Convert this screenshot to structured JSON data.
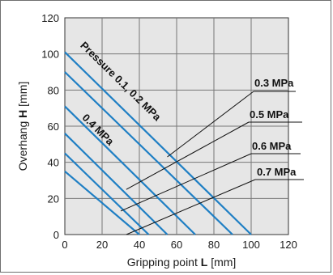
{
  "chart_data": {
    "type": "line",
    "xlabel": "Gripping point",
    "xlabel_symbol": "L",
    "xlabel_unit": "[mm]",
    "ylabel": "Overhang",
    "ylabel_symbol": "H",
    "ylabel_unit": "[mm]",
    "xlim": [
      0,
      120
    ],
    "ylim": [
      0,
      120
    ],
    "x_ticks": [
      "0",
      "20",
      "40",
      "60",
      "80",
      "100",
      "120"
    ],
    "y_ticks": [
      "0",
      "20",
      "40",
      "60",
      "80",
      "100",
      "120"
    ],
    "grid": true,
    "series": [
      {
        "label": "Pressure 0.1, 0.2 MPa",
        "x": [
          0,
          100
        ],
        "y": [
          101,
          0
        ]
      },
      {
        "x": [
          0,
          90
        ],
        "y": [
          90,
          0
        ]
      },
      {
        "x": [
          0,
          70
        ],
        "y": [
          71,
          0
        ]
      },
      {
        "label": "0.4 MPa",
        "x": [
          0,
          55
        ],
        "y": [
          56,
          0
        ]
      },
      {
        "x": [
          0,
          45
        ],
        "y": [
          45,
          0
        ]
      },
      {
        "x": [
          0,
          40
        ],
        "y": [
          35,
          0
        ]
      }
    ],
    "annotations": [
      {
        "text": "0.3 MPa",
        "leader_to": [
          55,
          43
        ]
      },
      {
        "text": "0.5 MPa",
        "leader_to": [
          33,
          25
        ]
      },
      {
        "text": "0.6 MPa",
        "leader_to": [
          30,
          13
        ]
      },
      {
        "text": "0.7 MPa",
        "leader_to": [
          33,
          0
        ]
      }
    ],
    "colors": {
      "line": "#1f7fc4",
      "grid": "#777777",
      "plot_background": "#e6e6e6",
      "leader": "#111111"
    }
  }
}
